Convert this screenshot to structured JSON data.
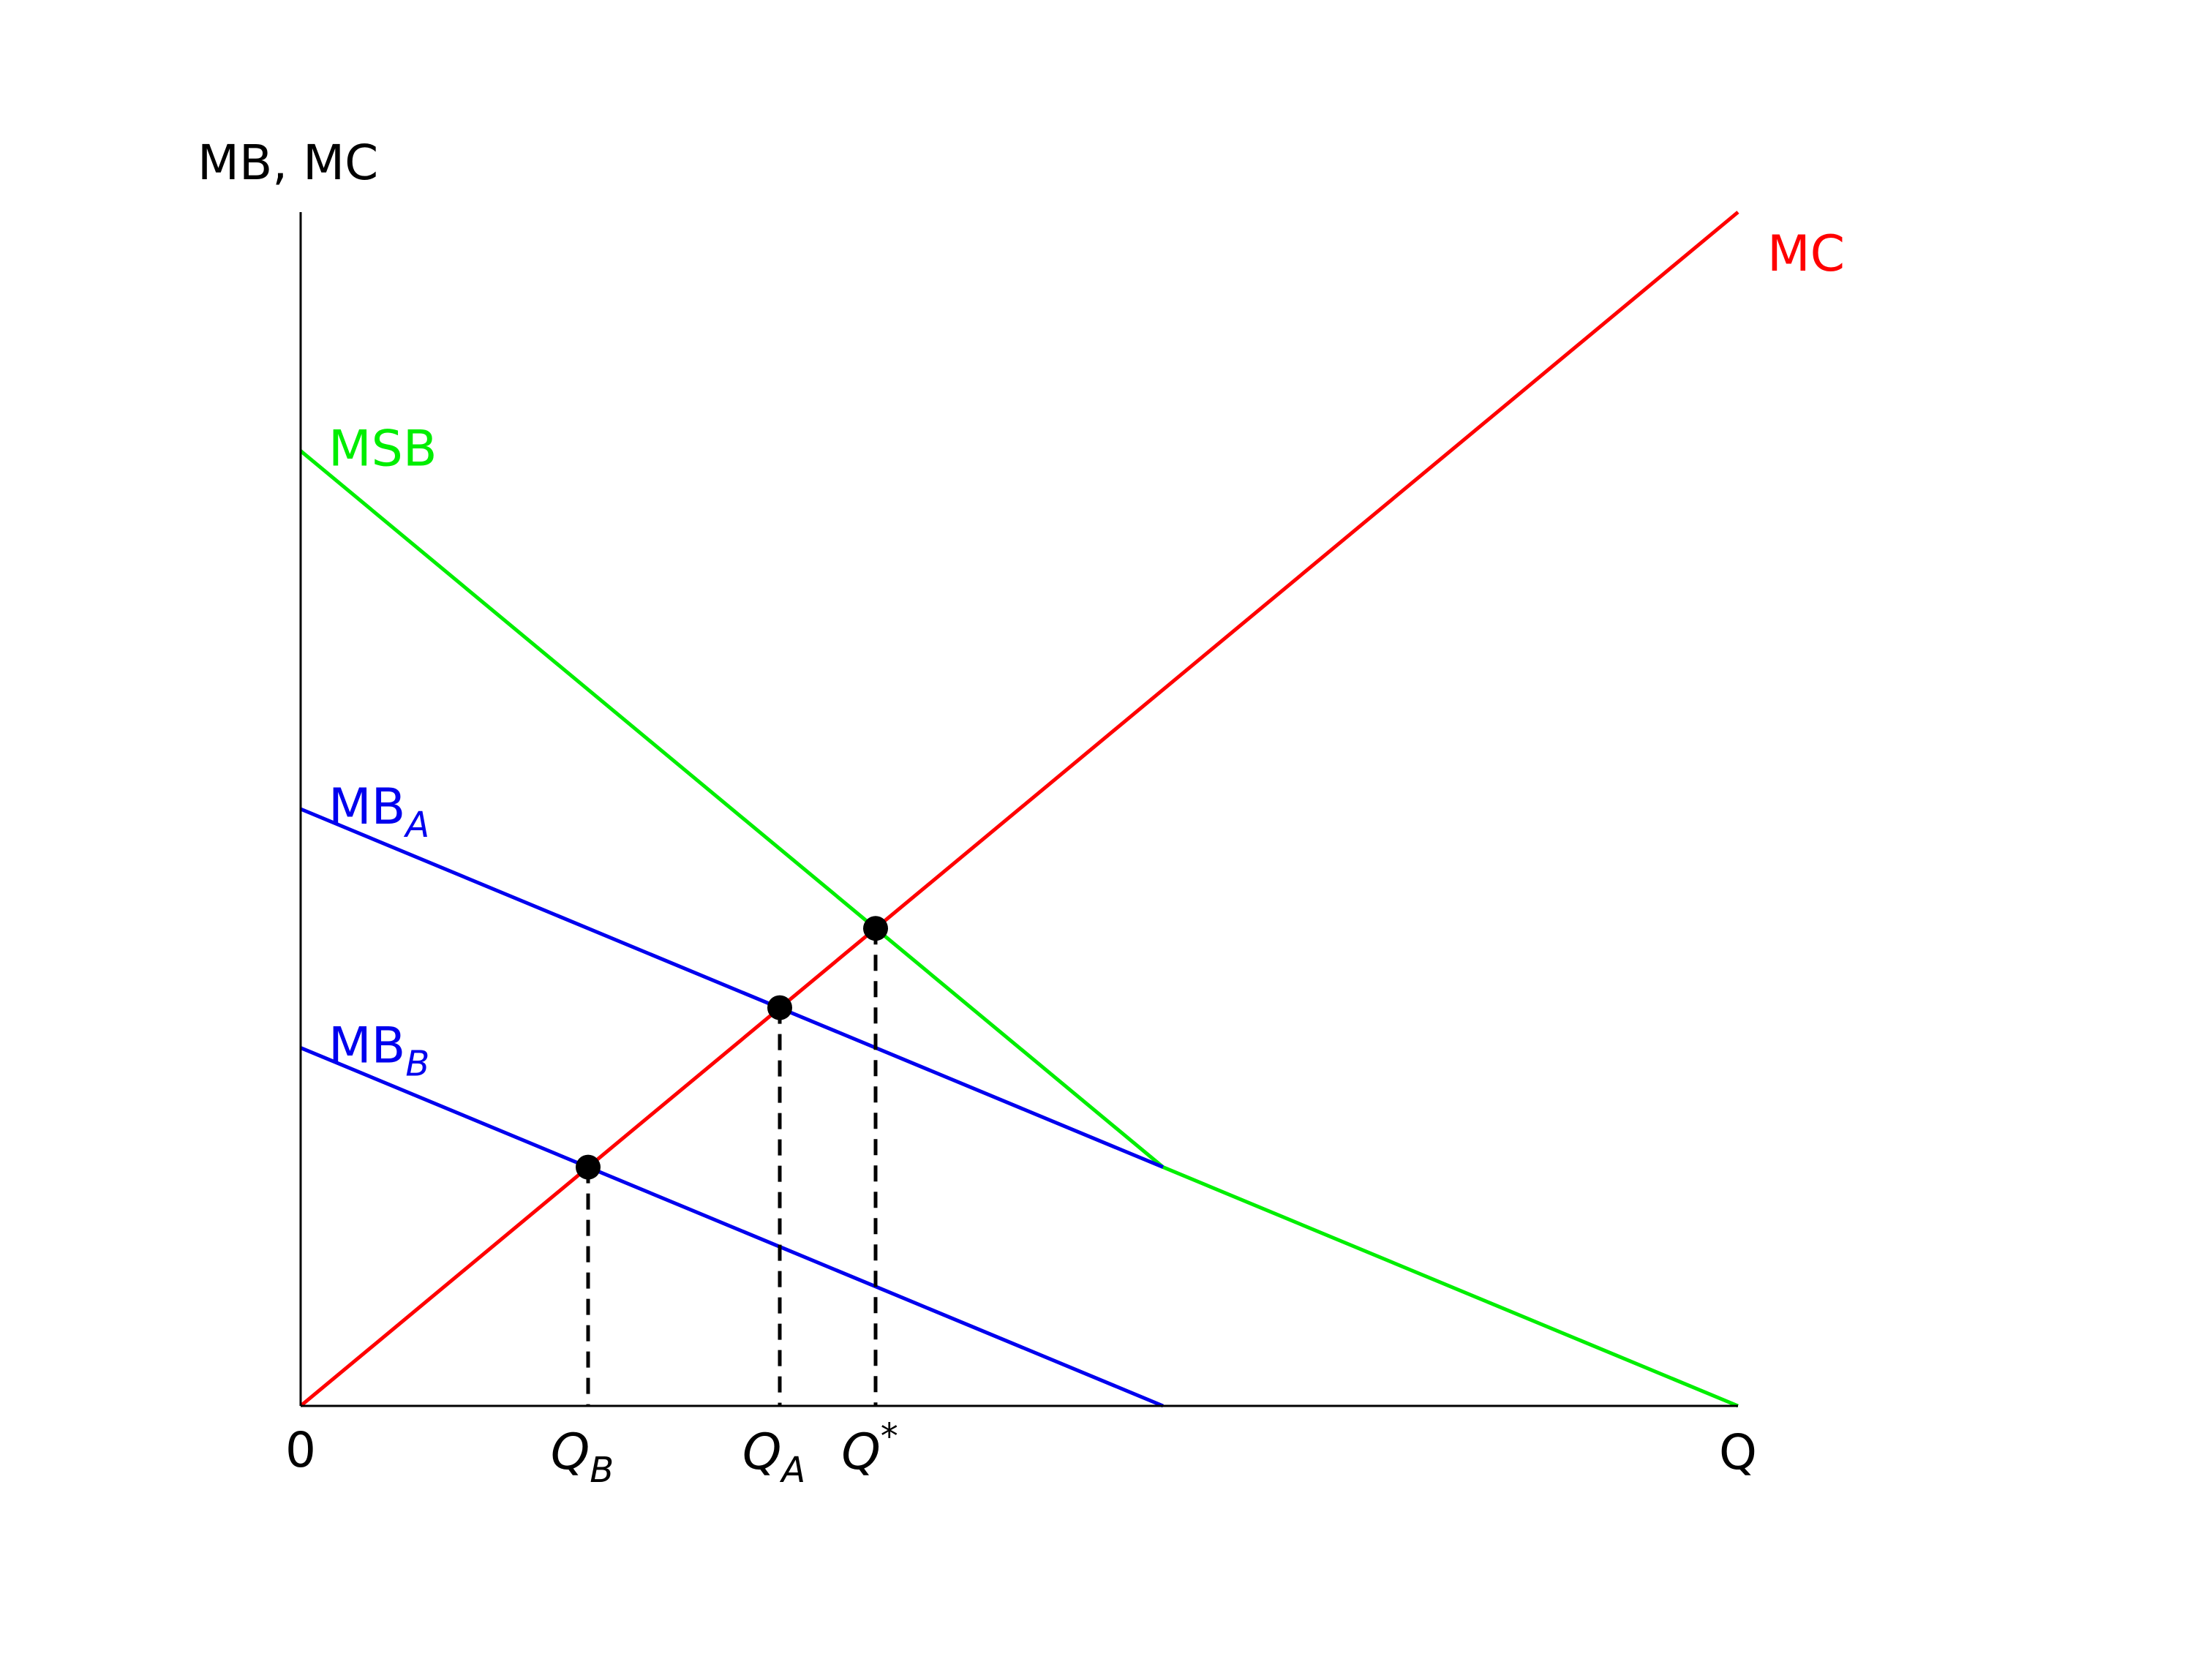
{
  "chart_data": {
    "type": "line",
    "ylabel": "MB, MC",
    "xlabel": "Q",
    "origin_label": "0",
    "xlim": [
      0,
      15
    ],
    "ylim": [
      0,
      12.5
    ],
    "grid": false,
    "series": [
      {
        "name": "MC",
        "color": "#ff0000",
        "x": [
          0,
          15
        ],
        "y": [
          0,
          12.5
        ]
      },
      {
        "name": "MSB",
        "color": "#00ee00",
        "x": [
          0,
          9,
          15
        ],
        "y": [
          10,
          2.5,
          0
        ]
      },
      {
        "name": "MB",
        "subscript": "A",
        "color": "#0000ee",
        "x": [
          0,
          9
        ],
        "y": [
          6.25,
          2.5
        ]
      },
      {
        "name": "MB",
        "subscript": "B",
        "color": "#0000ee",
        "x": [
          0,
          9
        ],
        "y": [
          3.75,
          0
        ]
      }
    ],
    "equilibria": [
      {
        "label": "Q",
        "subscript": "B",
        "superscript": "",
        "x": 3.0,
        "y": 2.5
      },
      {
        "label": "Q",
        "subscript": "A",
        "superscript": "",
        "x": 5.0,
        "y": 4.17
      },
      {
        "label": "Q",
        "subscript": "",
        "superscript": "*",
        "x": 6.0,
        "y": 5.0
      }
    ]
  }
}
